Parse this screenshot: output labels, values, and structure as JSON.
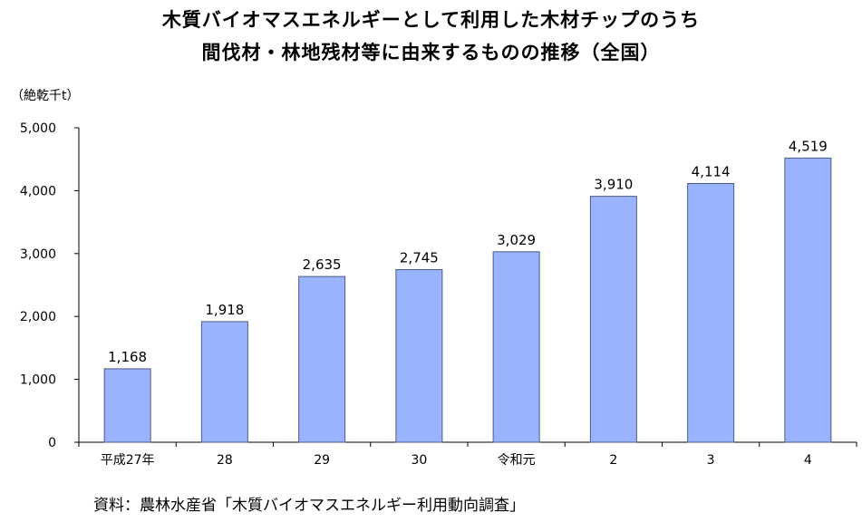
{
  "chart_data": {
    "type": "bar",
    "title_lines": [
      "木質バイオマスエネルギーとして利用した木材チップのうち",
      "間伐材・林地残材等に由来するものの推移（全国）"
    ],
    "unit_label": "（絶乾千t）",
    "categories": [
      "平成27年",
      "28",
      "29",
      "30",
      "令和元",
      "2",
      "3",
      "4"
    ],
    "values": [
      1168,
      1918,
      2635,
      2745,
      3029,
      3910,
      4114,
      4519
    ],
    "value_labels": [
      "1,168",
      "1,918",
      "2,635",
      "2,745",
      "3,029",
      "3,910",
      "4,114",
      "4,519"
    ],
    "ylim": [
      0,
      5000
    ],
    "yticks": [
      0,
      1000,
      2000,
      3000,
      4000,
      5000
    ],
    "ytick_labels": [
      "0",
      "1,000",
      "2,000",
      "3,000",
      "4,000",
      "5,000"
    ],
    "bar_color": "#99b3ff",
    "bar_edge_color": "#4d5a80",
    "grid": false,
    "legend": "none"
  },
  "source": "資料：農林水産省「木質バイオマスエネルギー利用動向調査」"
}
